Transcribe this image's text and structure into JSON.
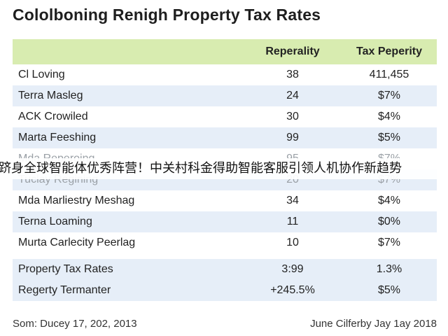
{
  "title": "Cololboning Renigh Property Tax Rates",
  "columns": [
    "",
    "Reperality",
    "Tax Peperity"
  ],
  "rows": [
    {
      "name": "Cl Loving",
      "value": "38",
      "tax": "411,455"
    },
    {
      "name": "Terra Masleg",
      "value": "24",
      "tax": "$7%"
    },
    {
      "name": "ACK Crowiled",
      "value": "30",
      "tax": "$4%"
    },
    {
      "name": "Marta Feeshing",
      "value": "99",
      "tax": "$5%"
    },
    {
      "name": "Mda Reperoing",
      "value": "95",
      "tax": "$7%"
    },
    {
      "name": "Tuclay Regining",
      "value": "20",
      "tax": "$7%"
    },
    {
      "name": "Mda Marliestry Meshag",
      "value": "34",
      "tax": "$4%"
    },
    {
      "name": "Terna Loaming",
      "value": "11",
      "tax": "$0%"
    },
    {
      "name": "Murta Carlecity Peerlag",
      "value": "10",
      "tax": "$7%"
    }
  ],
  "summary": [
    {
      "name": "Property Tax Rates",
      "value": "3:99",
      "tax": "1.3%"
    },
    {
      "name": "Regerty Termanter",
      "value": "+245.5%",
      "tax": "$5%"
    }
  ],
  "banner": "跻身全球智能体优秀阵营！中关村科金得助智能客服引领人机协作新趋势",
  "footer": {
    "left": "Som: Ducey 17, 202, 2013",
    "right": "June Cilferby Jay 1ay 2018"
  }
}
